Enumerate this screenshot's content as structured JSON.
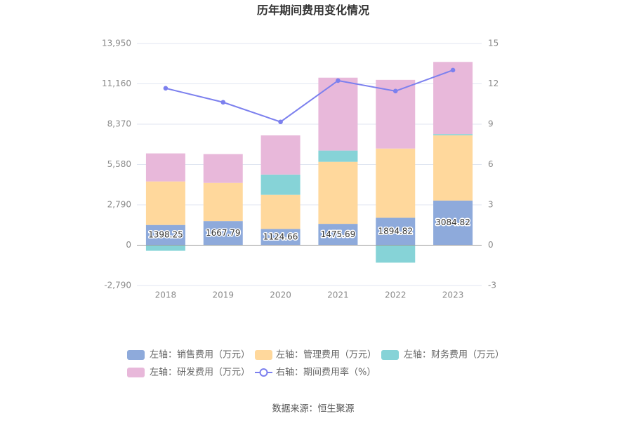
{
  "title": "历年期间费用变化情况",
  "source": "数据来源：恒生聚源",
  "chart_data": {
    "type": "bar",
    "title": "历年期间费用变化情况",
    "categories": [
      "2018",
      "2019",
      "2020",
      "2021",
      "2022",
      "2023"
    ],
    "left_axis": {
      "min": -2790,
      "max": 13950,
      "ticks": [
        13950,
        11160,
        8370,
        5580,
        2790,
        0,
        -2790
      ],
      "tick_labels": [
        "13,950",
        "11,160",
        "8,370",
        "5,580",
        "2,790",
        "0",
        "-2,790"
      ]
    },
    "right_axis": {
      "min": -3,
      "max": 15,
      "ticks": [
        15,
        12,
        9,
        6,
        3,
        0,
        -3
      ],
      "tick_labels": [
        "15",
        "12",
        "9",
        "6",
        "3",
        "0",
        "-3"
      ]
    },
    "stacked": true,
    "grid": true,
    "legend_position": "bottom",
    "series": [
      {
        "name": "左轴：销售费用（万元）",
        "type": "bar",
        "axis": "left",
        "color": "#8eaadb",
        "values": [
          1398.25,
          1667.79,
          1124.66,
          1475.69,
          1894.82,
          3084.82
        ]
      },
      {
        "name": "左轴：管理费用（万元）",
        "type": "bar",
        "axis": "left",
        "color": "#ffd89c",
        "values": [
          3010,
          2640,
          2360,
          4290,
          4790,
          4520
        ]
      },
      {
        "name": "左轴：财务费用（万元）",
        "type": "bar",
        "axis": "left",
        "color": "#86d3d7",
        "values": [
          -390,
          -30,
          1400,
          780,
          -1210,
          80
        ]
      },
      {
        "name": "左轴：研发费用（万元）",
        "type": "bar",
        "axis": "left",
        "color": "#e8b8da",
        "values": [
          1940,
          1990,
          2710,
          5040,
          4750,
          4990
        ]
      },
      {
        "name": "右轴：期间费用率（%）",
        "type": "line",
        "axis": "right",
        "color": "#7c80ee",
        "values": [
          11.67,
          10.63,
          9.17,
          12.24,
          11.46,
          13.02
        ]
      }
    ]
  }
}
